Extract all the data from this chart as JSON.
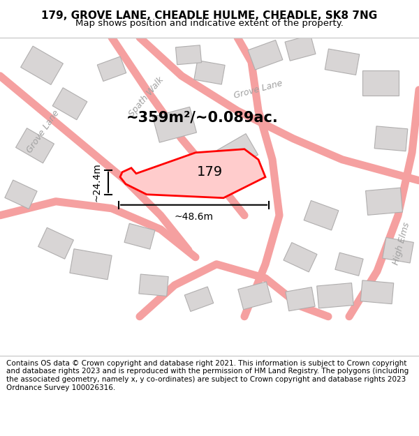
{
  "title_line1": "179, GROVE LANE, CHEADLE HULME, CHEADLE, SK8 7NG",
  "title_line2": "Map shows position and indicative extent of the property.",
  "footer_text": "Contains OS data © Crown copyright and database right 2021. This information is subject to Crown copyright and database rights 2023 and is reproduced with the permission of HM Land Registry. The polygons (including the associated geometry, namely x, y co-ordinates) are subject to Crown copyright and database rights 2023 Ordnance Survey 100026316.",
  "area_label": "~359m²/~0.089ac.",
  "plot_number": "179",
  "dim_width": "~48.6m",
  "dim_height": "~24.4m",
  "background_color": "#f5f5f5",
  "map_bg": "#f0eeee",
  "road_color": "#f5a0a0",
  "road_outline": "#e08080",
  "building_fill": "#d8d5d5",
  "building_stroke": "#b0aeae",
  "plot_fill": "#ffcccc",
  "plot_stroke": "#ff0000",
  "dim_line_color": "#000000",
  "text_color": "#000000",
  "road_label_color": "#a0a0a0",
  "title_fontsize": 11,
  "subtitle_fontsize": 9.5,
  "footer_fontsize": 7.5,
  "area_label_fontsize": 15,
  "plot_number_fontsize": 14,
  "dim_fontsize": 10,
  "road_label_fontsize": 9,
  "map_border_color": "#cccccc"
}
